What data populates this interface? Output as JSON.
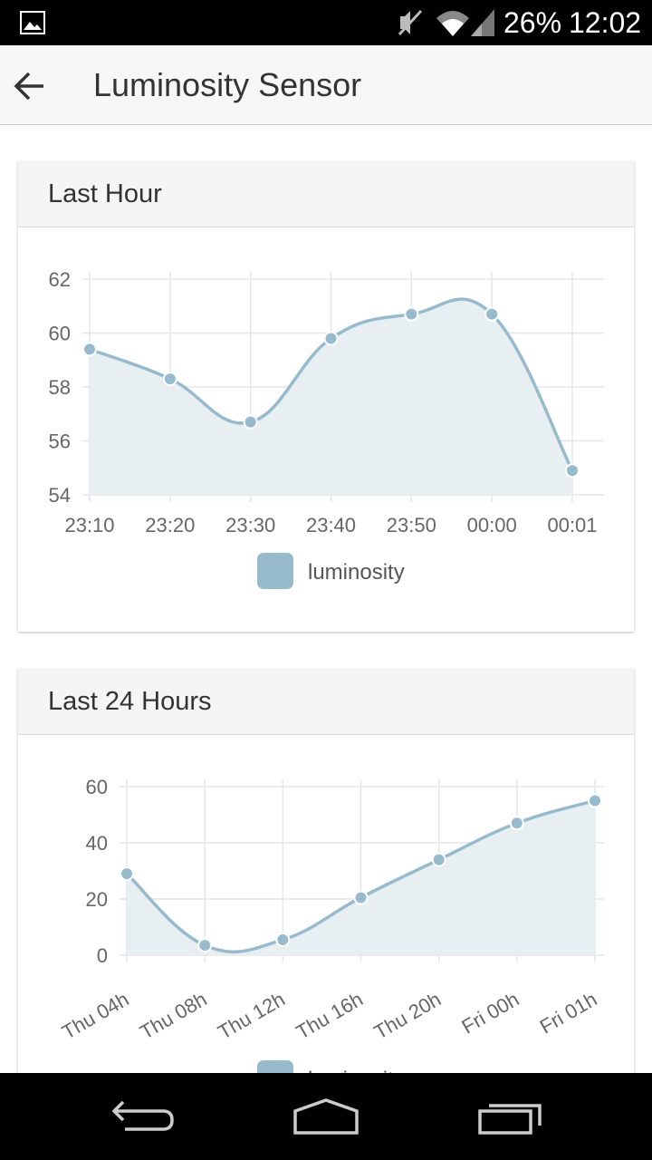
{
  "status_bar": {
    "battery": "26%",
    "time": "12:02",
    "icons": [
      "image-icon",
      "mute-icon",
      "wifi-icon",
      "signal-icon"
    ]
  },
  "app_bar": {
    "title": "Luminosity Sensor",
    "back_icon": "arrow-back-icon"
  },
  "colors": {
    "series_line": "#97bbcd",
    "series_fill": "#e8eff3",
    "point_fill": "#97bbcd",
    "grid": "#e6e6e6"
  },
  "cards": [
    {
      "title": "Last Hour",
      "legend": "luminosity"
    },
    {
      "title": "Last 24 Hours",
      "legend": "luminosity"
    }
  ],
  "chart_data": [
    {
      "type": "area",
      "title": "Last Hour",
      "categories": [
        "23:10",
        "23:20",
        "23:30",
        "23:40",
        "23:50",
        "00:00",
        "00:01"
      ],
      "series": [
        {
          "name": "luminosity",
          "values": [
            59.4,
            58.3,
            56.7,
            59.8,
            60.7,
            60.7,
            54.9
          ]
        }
      ],
      "yticks": [
        "62",
        "60",
        "58",
        "56",
        "54"
      ],
      "ylim": [
        54,
        62
      ],
      "grid": true,
      "legend": "bottom-center"
    },
    {
      "type": "area",
      "title": "Last 24 Hours",
      "categories": [
        "Thu 04h",
        "Thu 08h",
        "Thu 12h",
        "Thu 16h",
        "Thu 20h",
        "Fri 00h",
        "Fri 01h"
      ],
      "series": [
        {
          "name": "luminosity",
          "values": [
            29,
            3.5,
            5.5,
            20.5,
            34,
            47,
            55
          ]
        }
      ],
      "yticks": [
        "60",
        "40",
        "20",
        "0"
      ],
      "ylim": [
        0,
        60
      ],
      "grid": true,
      "legend": "bottom-center"
    }
  ],
  "nav_bar": {
    "buttons": [
      "back-nav-icon",
      "home-icon",
      "recents-icon"
    ]
  }
}
